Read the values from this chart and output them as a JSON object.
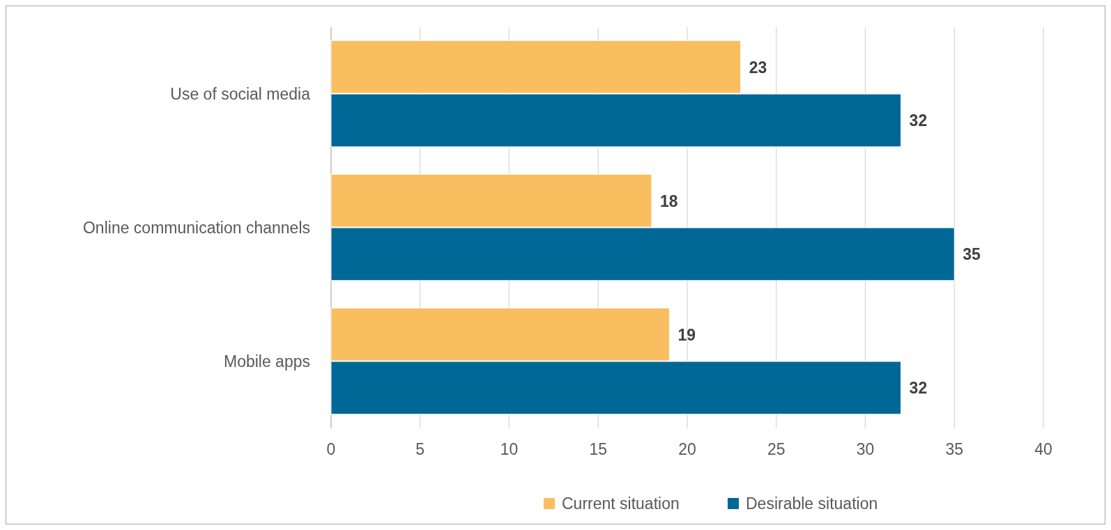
{
  "chart_data": {
    "type": "bar",
    "orientation": "horizontal",
    "categories": [
      "Use of social media",
      "Online communication channels",
      "Mobile apps"
    ],
    "series": [
      {
        "name": "Current situation",
        "color": "#f9be5f",
        "values": [
          23,
          18,
          19
        ]
      },
      {
        "name": "Desirable situation",
        "color": "#006896",
        "values": [
          32,
          35,
          32
        ]
      }
    ],
    "xlim": [
      0,
      40
    ],
    "xticks": [
      0,
      5,
      10,
      15,
      20,
      25,
      30,
      35,
      40
    ],
    "grid": "x",
    "legend": "bottom",
    "data_labels": true
  }
}
